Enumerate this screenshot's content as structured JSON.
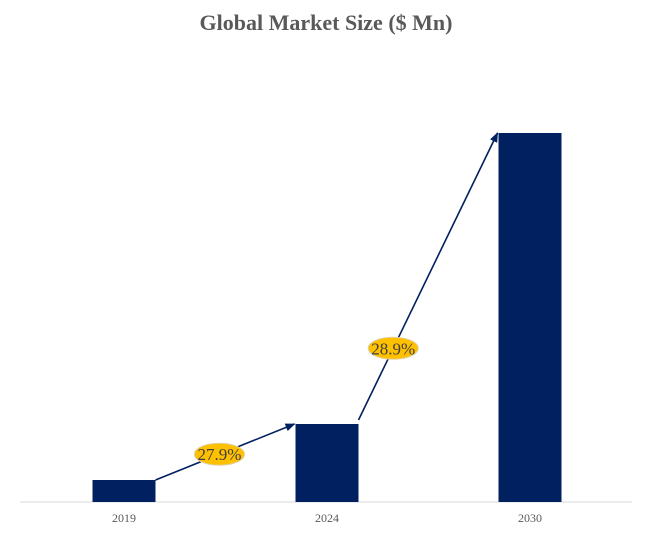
{
  "chart_data": {
    "type": "bar",
    "title": "Global Market Size ($ Mn)",
    "categories": [
      "2019",
      "2024",
      "2030"
    ],
    "values": [
      22,
      78,
      369
    ],
    "value_note": "relative values; no value axis shown",
    "ylim": [
      0,
      400
    ],
    "xlabel": "",
    "ylabel": "",
    "grid": false,
    "annotations": [
      {
        "from": "2019",
        "to": "2024",
        "label": "27.9%"
      },
      {
        "from": "2024",
        "to": "2030",
        "label": "28.9%"
      }
    ],
    "colors": {
      "bar": "#002060",
      "badge": "#FFC000",
      "arrow": "#002060"
    }
  }
}
